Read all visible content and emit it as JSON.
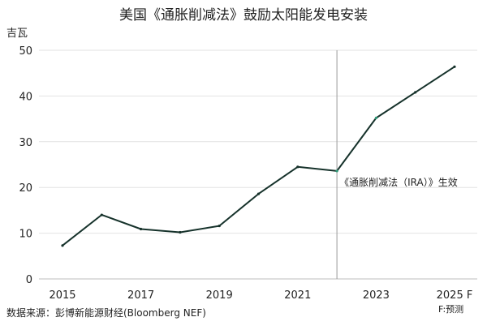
{
  "chart_data": {
    "type": "line",
    "title": "美国《通胀削减法》鼓励太阳能发电安装",
    "y_unit_label": "吉瓦",
    "ylim": [
      0,
      50
    ],
    "y_ticks": [
      0,
      10,
      20,
      30,
      40,
      50
    ],
    "x_tick_labels": [
      "2015",
      "2017",
      "2019",
      "2021",
      "2023",
      "2025 F"
    ],
    "x": [
      2015,
      2016,
      2017,
      2018,
      2019,
      2020,
      2021,
      2022,
      2023,
      2024,
      2025
    ],
    "values": [
      7.3,
      14.0,
      10.9,
      10.2,
      11.6,
      18.6,
      24.5,
      23.6,
      35.2,
      40.8,
      46.4
    ],
    "grid": "horizontal",
    "line_color": "#16322b",
    "marker_color": "#2f9a78",
    "annotation": {
      "x": 2022,
      "text": "《通胀削减法（IRA）》生效"
    },
    "source": "数据来源：彭博新能源财经(Bloomberg NEF)",
    "forecast_note": "F:预测"
  }
}
